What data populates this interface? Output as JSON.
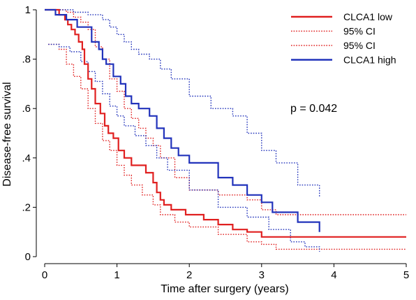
{
  "chart_data": {
    "type": "line",
    "title": "",
    "xlabel": "Time after surgery (years)",
    "ylabel": "Disease-free survival",
    "xlim": [
      0,
      5
    ],
    "ylim": [
      0,
      1
    ],
    "x_ticks": [
      0,
      1,
      2,
      3,
      4,
      5
    ],
    "x_tick_labels": [
      "0",
      "1",
      "2",
      "3",
      "4",
      "5"
    ],
    "y_ticks": [
      0,
      0.2,
      0.4,
      0.6,
      0.8,
      1
    ],
    "y_tick_labels": [
      "0",
      ".2",
      ".4",
      ".6",
      ".8",
      "1"
    ],
    "grid": false,
    "legend_position": "top-right",
    "annotation": "p = 0.042",
    "series": [
      {
        "name": "CLCA1 low",
        "color": "#e02020",
        "style": "solid",
        "step": true,
        "x": [
          0,
          0.2,
          0.28,
          0.32,
          0.37,
          0.42,
          0.47,
          0.52,
          0.55,
          0.6,
          0.65,
          0.7,
          0.77,
          0.83,
          0.88,
          0.95,
          1.02,
          1.1,
          1.2,
          1.4,
          1.5,
          1.55,
          1.6,
          1.65,
          1.75,
          1.95,
          2.2,
          2.4,
          2.6,
          2.8,
          3.0,
          3.8,
          5.0
        ],
        "y": [
          1.0,
          0.98,
          0.96,
          0.94,
          0.92,
          0.9,
          0.87,
          0.84,
          0.78,
          0.72,
          0.68,
          0.62,
          0.58,
          0.53,
          0.5,
          0.48,
          0.43,
          0.4,
          0.37,
          0.34,
          0.3,
          0.26,
          0.23,
          0.21,
          0.19,
          0.17,
          0.15,
          0.13,
          0.11,
          0.1,
          0.08,
          0.08,
          0.08
        ]
      },
      {
        "name": "95% CI",
        "color": "#e02020",
        "style": "dotted",
        "step": true,
        "x": [
          0,
          0.2,
          0.3,
          0.4,
          0.5,
          0.6,
          0.7,
          0.8,
          0.9,
          1.0,
          1.1,
          1.2,
          1.3,
          1.4,
          1.5,
          1.6,
          1.8,
          2.0,
          2.4,
          2.8,
          3.0,
          3.2,
          3.8,
          5.0
        ],
        "y": [
          1.0,
          1.0,
          0.99,
          0.97,
          0.95,
          0.92,
          0.85,
          0.8,
          0.72,
          0.67,
          0.6,
          0.56,
          0.52,
          0.48,
          0.45,
          0.4,
          0.32,
          0.27,
          0.25,
          0.23,
          0.19,
          0.17,
          0.17,
          0.17
        ]
      },
      {
        "name": "95% CI",
        "color": "#e02020",
        "style": "dotted",
        "step": true,
        "x": [
          0.05,
          0.2,
          0.3,
          0.4,
          0.5,
          0.6,
          0.7,
          0.8,
          0.9,
          1.0,
          1.1,
          1.2,
          1.35,
          1.5,
          1.6,
          1.8,
          2.0,
          2.4,
          2.8,
          3.0,
          3.2,
          3.8,
          5.0
        ],
        "y": [
          0.86,
          0.84,
          0.78,
          0.73,
          0.68,
          0.6,
          0.54,
          0.47,
          0.43,
          0.37,
          0.33,
          0.29,
          0.25,
          0.21,
          0.17,
          0.14,
          0.12,
          0.09,
          0.06,
          0.05,
          0.03,
          0.03,
          0.03
        ]
      },
      {
        "name": "CLCA1 high",
        "color": "#2233bb",
        "style": "solid",
        "step": true,
        "x": [
          0,
          0.15,
          0.3,
          0.45,
          0.65,
          0.75,
          0.8,
          0.85,
          0.95,
          1.05,
          1.12,
          1.2,
          1.3,
          1.45,
          1.55,
          1.65,
          1.75,
          1.85,
          2.0,
          2.4,
          2.6,
          2.8,
          3.0,
          3.15,
          3.5,
          3.8
        ],
        "y": [
          1.0,
          0.98,
          0.96,
          0.93,
          0.87,
          0.84,
          0.8,
          0.78,
          0.73,
          0.7,
          0.65,
          0.62,
          0.6,
          0.57,
          0.52,
          0.48,
          0.44,
          0.41,
          0.38,
          0.32,
          0.29,
          0.25,
          0.22,
          0.18,
          0.14,
          0.1
        ]
      },
      {
        "name": "95% CI",
        "color": "#2233bb",
        "style": "dotted",
        "step": true,
        "x": [
          0,
          0.2,
          0.4,
          0.6,
          0.8,
          0.9,
          1.0,
          1.1,
          1.2,
          1.3,
          1.45,
          1.6,
          1.75,
          2.0,
          2.3,
          2.6,
          2.8,
          3.0,
          3.2,
          3.5,
          3.8
        ],
        "y": [
          1.0,
          1.0,
          0.99,
          0.98,
          0.96,
          0.93,
          0.9,
          0.87,
          0.84,
          0.82,
          0.8,
          0.76,
          0.72,
          0.65,
          0.6,
          0.57,
          0.5,
          0.43,
          0.38,
          0.29,
          0.24
        ]
      },
      {
        "name": "95% CI",
        "color": "#2233bb",
        "style": "dotted",
        "step": true,
        "x": [
          0.05,
          0.2,
          0.35,
          0.5,
          0.6,
          0.7,
          0.8,
          0.9,
          1.0,
          1.1,
          1.25,
          1.4,
          1.55,
          1.7,
          2.0,
          2.4,
          2.8,
          3.1,
          3.4,
          3.6,
          3.8
        ],
        "y": [
          0.86,
          0.85,
          0.83,
          0.79,
          0.75,
          0.71,
          0.66,
          0.61,
          0.57,
          0.53,
          0.49,
          0.45,
          0.4,
          0.35,
          0.27,
          0.2,
          0.16,
          0.11,
          0.06,
          0.04,
          0.02
        ]
      }
    ]
  }
}
